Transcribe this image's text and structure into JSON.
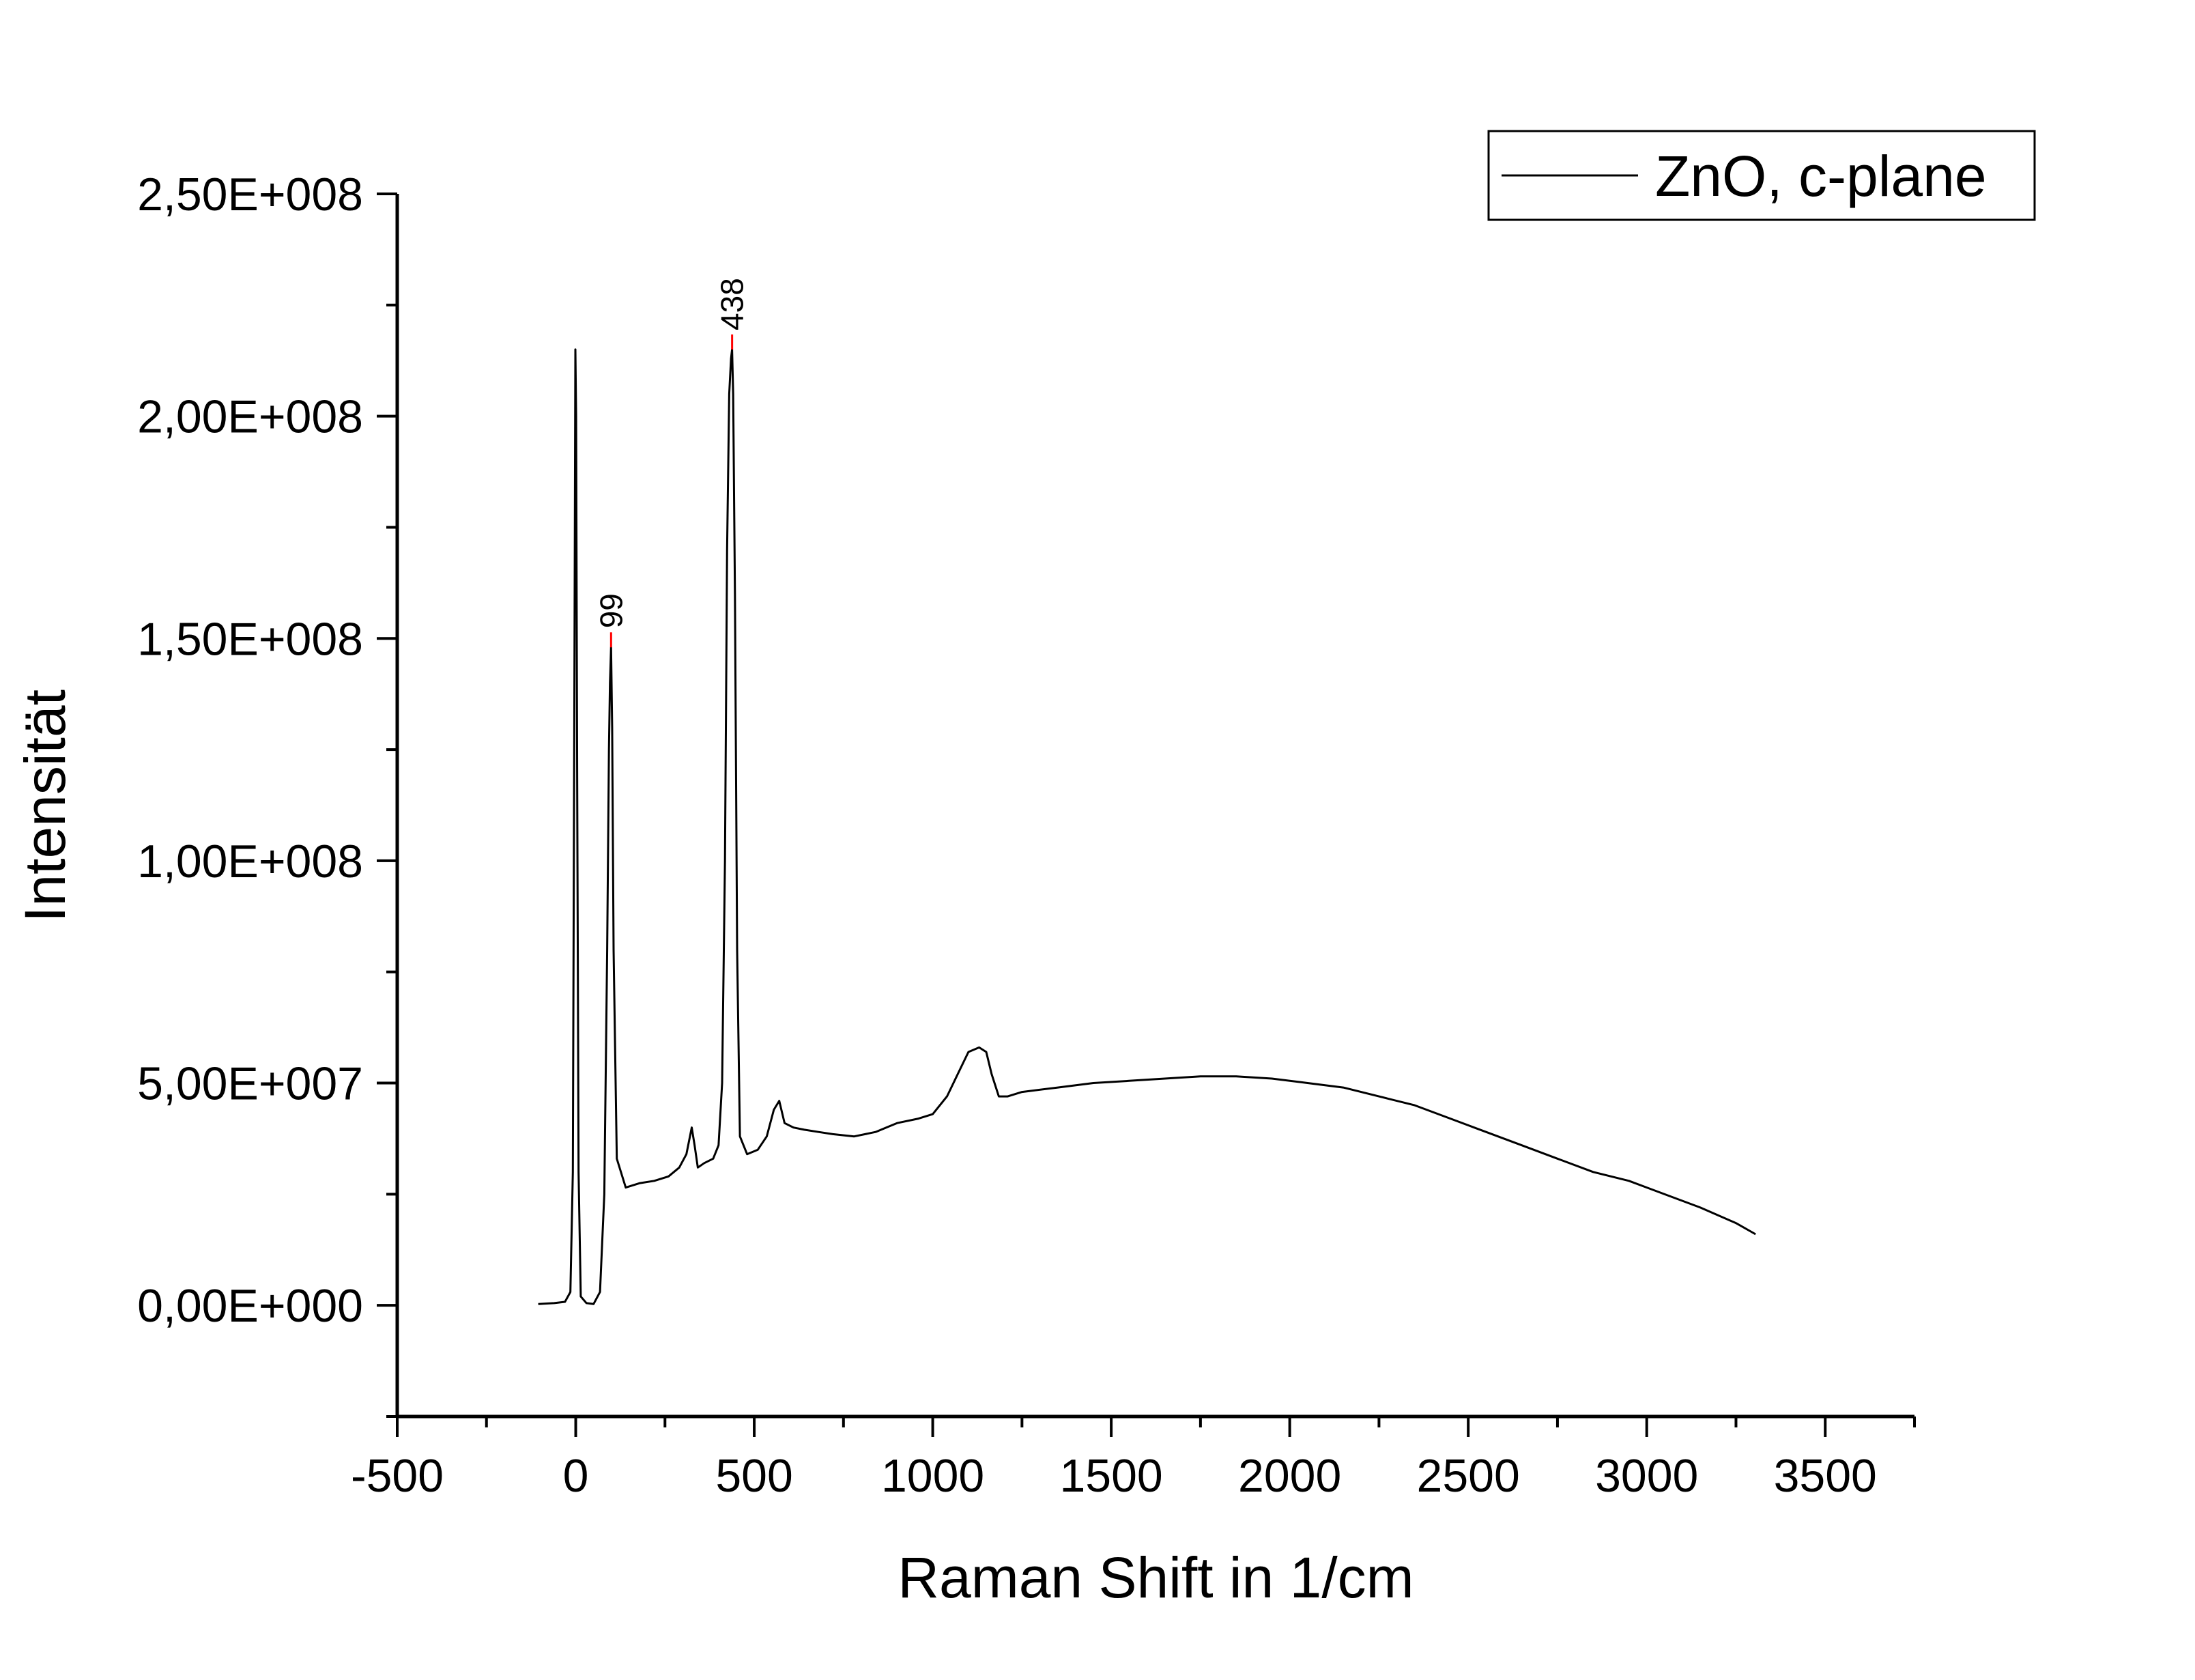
{
  "chart_data": {
    "type": "line",
    "title": "",
    "xlabel": "Raman Shift in 1/cm",
    "ylabel": "Intensität",
    "xlim": [
      -500,
      3750
    ],
    "ylim": [
      -25000000,
      250000000
    ],
    "x_ticks": [
      -500,
      0,
      500,
      1000,
      1500,
      2000,
      2500,
      3000,
      3500
    ],
    "x_tick_labels": [
      "-500",
      "0",
      "500",
      "1000",
      "1500",
      "2000",
      "2500",
      "3000",
      "3500"
    ],
    "y_ticks": [
      0,
      50000000,
      100000000,
      150000000,
      200000000,
      250000000
    ],
    "y_tick_labels": [
      "0,00E+000",
      "5,00E+007",
      "1,00E+008",
      "1,50E+008",
      "2,00E+008",
      "2,50E+008"
    ],
    "grid": false,
    "legend": {
      "position": "top-right"
    },
    "series": [
      {
        "name": "ZnO, c-plane",
        "color": "#000000",
        "x": [
          -105,
          -60,
          -30,
          -15,
          -8,
          -4,
          -1,
          1,
          4,
          8,
          14,
          30,
          50,
          68,
          80,
          88,
          93,
          96,
          99,
          102,
          106,
          115,
          140,
          180,
          220,
          260,
          290,
          310,
          325,
          333,
          342,
          360,
          385,
          400,
          410,
          418,
          424,
          430,
          435,
          438,
          441,
          446,
          452,
          460,
          480,
          510,
          535,
          555,
          570,
          585,
          610,
          640,
          680,
          720,
          780,
          840,
          900,
          960,
          1000,
          1040,
          1070,
          1100,
          1130,
          1150,
          1165,
          1185,
          1210,
          1250,
          1350,
          1450,
          1550,
          1650,
          1750,
          1850,
          1950,
          2050,
          2150,
          2250,
          2350,
          2450,
          2550,
          2650,
          2750,
          2850,
          2950,
          3050,
          3150,
          3250,
          3305
        ],
        "y": [
          300000,
          500000,
          800000,
          3000000,
          30000000,
          130000000,
          215000000,
          200000000,
          120000000,
          30000000,
          2000000,
          500000,
          300000,
          3000000,
          25000000,
          80000000,
          125000000,
          140000000,
          148000000,
          130000000,
          80000000,
          33000000,
          26500000,
          27500000,
          28000000,
          29000000,
          31000000,
          34000000,
          40000000,
          36000000,
          31000000,
          32000000,
          33000000,
          36000000,
          50000000,
          100000000,
          170000000,
          205000000,
          213000000,
          215000000,
          205000000,
          160000000,
          80000000,
          38000000,
          34000000,
          35000000,
          38000000,
          44000000,
          46000000,
          41000000,
          40000000,
          39500000,
          39000000,
          38500000,
          38000000,
          39000000,
          41000000,
          42000000,
          43000000,
          47000000,
          52000000,
          57000000,
          58000000,
          57000000,
          52000000,
          47000000,
          47000000,
          48000000,
          49000000,
          50000000,
          50500000,
          51000000,
          51500000,
          51500000,
          51000000,
          50000000,
          49000000,
          47000000,
          45000000,
          42000000,
          39000000,
          36000000,
          33000000,
          30000000,
          28000000,
          25000000,
          22000000,
          18500000,
          16000000
        ]
      }
    ],
    "annotations": [
      {
        "label": "99",
        "x": 99,
        "y": 148000000
      },
      {
        "label": "438",
        "x": 438,
        "y": 215000000
      }
    ]
  }
}
